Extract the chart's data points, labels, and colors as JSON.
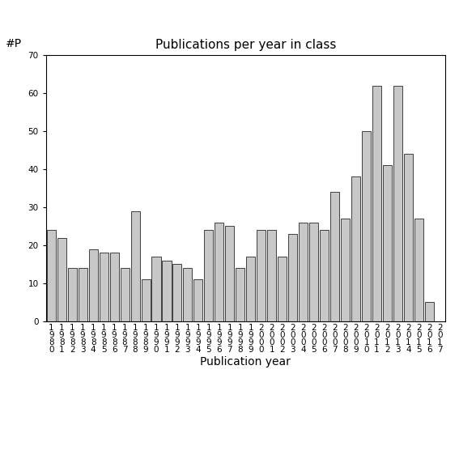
{
  "title": "Publications per year in class",
  "xlabel": "Publication year",
  "ylabel": "#P",
  "years": [
    "1980",
    "1981",
    "1982",
    "1983",
    "1984",
    "1985",
    "1986",
    "1987",
    "1988",
    "1989",
    "1990",
    "1991",
    "1992",
    "1993",
    "1994",
    "1995",
    "1996",
    "1997",
    "1998",
    "1999",
    "2000",
    "2001",
    "2002",
    "2003",
    "2004",
    "2005",
    "2006",
    "2007",
    "2008",
    "2009",
    "2010",
    "2011",
    "2012",
    "2013",
    "2014",
    "2015",
    "2016",
    "2017"
  ],
  "values": [
    24,
    22,
    14,
    14,
    19,
    18,
    18,
    14,
    29,
    11,
    17,
    16,
    15,
    14,
    11,
    24,
    26,
    25,
    14,
    17,
    24,
    24,
    17,
    23,
    26,
    26,
    24,
    34,
    27,
    38,
    50,
    62,
    41,
    62,
    44,
    27,
    5,
    0
  ],
  "bar_color": "#c8c8c8",
  "bar_edge_color": "#000000",
  "bar_edge_width": 0.5,
  "ylim": [
    0,
    70
  ],
  "yticks": [
    0,
    10,
    20,
    30,
    40,
    50,
    60,
    70
  ],
  "background_color": "#ffffff",
  "title_fontsize": 11,
  "label_fontsize": 10,
  "tick_fontsize": 7.5
}
